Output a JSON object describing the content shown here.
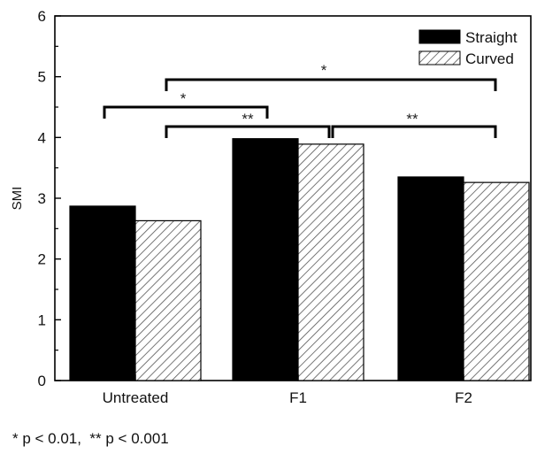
{
  "chart_data": {
    "type": "bar",
    "categories": [
      "Untreated",
      "F1",
      "F2"
    ],
    "series": [
      {
        "name": "Straight",
        "values": [
          2.87,
          3.98,
          3.35
        ],
        "pattern": "solid",
        "color": "#000000"
      },
      {
        "name": "Curved",
        "values": [
          2.63,
          3.89,
          3.26
        ],
        "pattern": "hatched",
        "color": "#555555"
      }
    ],
    "ylabel": "SMI",
    "ylim": [
      0,
      6
    ],
    "yticks": [
      "0",
      "1",
      "2",
      "3",
      "4",
      "5",
      "6"
    ],
    "legend_position": "top-right",
    "grid": false,
    "significance": [
      {
        "from": "Untreated",
        "to": "F1",
        "label": "*"
      },
      {
        "from": "Untreated",
        "to": "F2",
        "label": "*"
      },
      {
        "from": "Untreated",
        "to": "F1",
        "label": "**"
      },
      {
        "from": "F1",
        "to": "F2",
        "label": "**"
      }
    ],
    "footnote": "* p < 0.01,  ** p < 0.001"
  }
}
